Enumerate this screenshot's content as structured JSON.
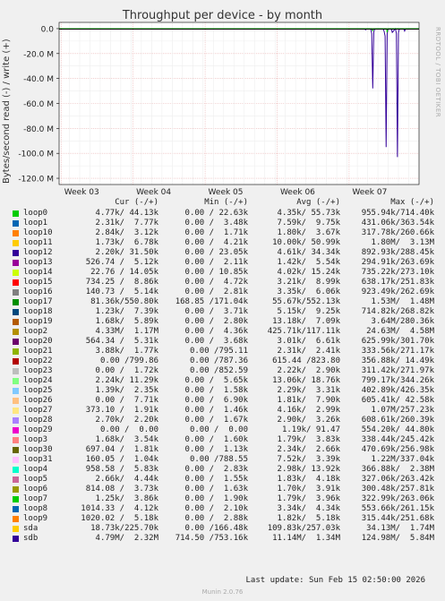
{
  "chart_data": {
    "type": "line",
    "title": "Throughput per device - by month",
    "ylabel": "Bytes/second read (-) / write (+)",
    "yticks": [
      "0.0",
      "-20.0 M",
      "-40.0 M",
      "-60.0 M",
      "-80.0 M",
      "-100.0 M",
      "-120.0 M"
    ],
    "ylim": [
      -125,
      5
    ],
    "y_unit": "M",
    "xticks": [
      "Week 03",
      "Week 04",
      "Week 05",
      "Week 06",
      "Week 07"
    ],
    "xlim": [
      0,
      35
    ],
    "grid": true,
    "side_label": "RRDTOOL / TOBI OETIKER",
    "series": [
      {
        "name": "sdb",
        "color": "#330099",
        "points": [
          [
            0,
            0
          ],
          [
            29.7,
            0
          ],
          [
            29.8,
            -1
          ],
          [
            29.9,
            0
          ],
          [
            30.3,
            0
          ],
          [
            30.4,
            -4
          ],
          [
            30.5,
            -48
          ],
          [
            30.6,
            -3
          ],
          [
            30.7,
            0
          ],
          [
            31.5,
            0
          ],
          [
            31.6,
            -2
          ],
          [
            31.7,
            -6
          ],
          [
            31.8,
            -95
          ],
          [
            31.9,
            -4
          ],
          [
            32,
            0
          ],
          [
            32.3,
            0
          ],
          [
            32.4,
            -3
          ],
          [
            32.5,
            -2
          ],
          [
            32.7,
            0
          ],
          [
            32.8,
            -4
          ],
          [
            32.9,
            -103
          ],
          [
            33,
            -3
          ],
          [
            33.1,
            0
          ],
          [
            33.5,
            0
          ],
          [
            33.6,
            -2
          ],
          [
            33.7,
            0
          ],
          [
            35,
            0
          ]
        ]
      },
      {
        "name": "sda",
        "color": "#00cc00",
        "points": [
          [
            0,
            0
          ],
          [
            30.45,
            0
          ],
          [
            30.5,
            -2
          ],
          [
            30.55,
            0
          ],
          [
            31.85,
            0
          ],
          [
            31.9,
            -3
          ],
          [
            31.95,
            0
          ],
          [
            35,
            0
          ]
        ]
      }
    ]
  },
  "legend": {
    "headers": {
      "cur": "Cur (-/+)",
      "min": "Min (-/+)",
      "avg": "Avg (-/+)",
      "max": "Max (-/+)"
    },
    "rows": [
      {
        "name": "loop0",
        "color": "#00cc00",
        "cur": "4.77k/ 44.13k",
        "min": "0.00 / 22.63k",
        "avg": "4.35k/ 55.73k",
        "max": "955.94k/714.40k"
      },
      {
        "name": "loop1",
        "color": "#0066b3",
        "cur": "2.31k/  7.77k",
        "min": "0.00 /  3.48k",
        "avg": "7.59k/  9.75k",
        "max": "431.06k/363.54k"
      },
      {
        "name": "loop10",
        "color": "#ff8000",
        "cur": "2.84k/  3.12k",
        "min": "0.00 /  1.71k",
        "avg": "1.80k/  3.67k",
        "max": "317.78k/260.66k"
      },
      {
        "name": "loop11",
        "color": "#ffcc00",
        "cur": "1.73k/  6.78k",
        "min": "0.00 /  4.21k",
        "avg": "10.00k/ 50.99k",
        "max": "1.80M/  3.13M"
      },
      {
        "name": "loop12",
        "color": "#330099",
        "cur": "2.20k/ 31.50k",
        "min": "0.00 / 23.05k",
        "avg": "4.61k/ 34.34k",
        "max": "892.93k/288.45k"
      },
      {
        "name": "loop13",
        "color": "#990099",
        "cur": "526.74 /  5.12k",
        "min": "0.00 /  2.11k",
        "avg": "1.42k/  5.54k",
        "max": "294.91k/263.69k"
      },
      {
        "name": "loop14",
        "color": "#ccff00",
        "cur": "22.76 / 14.05k",
        "min": "0.00 / 10.85k",
        "avg": "4.02k/ 15.24k",
        "max": "735.22k/273.10k"
      },
      {
        "name": "loop15",
        "color": "#ff0000",
        "cur": "734.25 /  8.86k",
        "min": "0.00 /  4.72k",
        "avg": "3.21k/  8.99k",
        "max": "638.17k/251.83k"
      },
      {
        "name": "loop16",
        "color": "#808080",
        "cur": "140.73 /  5.14k",
        "min": "0.00 /  2.81k",
        "avg": "3.35k/  6.06k",
        "max": "923.49k/262.69k"
      },
      {
        "name": "loop17",
        "color": "#008f00",
        "cur": "81.36k/550.80k",
        "min": "168.85 /171.04k",
        "avg": "55.67k/552.13k",
        "max": "1.53M/  1.48M"
      },
      {
        "name": "loop18",
        "color": "#00487d",
        "cur": "1.23k/  7.39k",
        "min": "0.00 /  3.71k",
        "avg": "5.15k/  9.25k",
        "max": "714.82k/268.82k"
      },
      {
        "name": "loop19",
        "color": "#b35a00",
        "cur": "1.68k/  5.89k",
        "min": "0.00 /  2.80k",
        "avg": "13.18k/  7.09k",
        "max": "3.64M/280.36k"
      },
      {
        "name": "loop2",
        "color": "#b38f00",
        "cur": "4.33M/  1.17M",
        "min": "0.00 /  4.36k",
        "avg": "425.71k/117.11k",
        "max": "24.63M/  4.58M"
      },
      {
        "name": "loop20",
        "color": "#6b006b",
        "cur": "564.34 /  5.31k",
        "min": "0.00 /  3.68k",
        "avg": "3.01k/  6.61k",
        "max": "625.99k/301.70k"
      },
      {
        "name": "loop21",
        "color": "#8fb300",
        "cur": "3.88k/  1.77k",
        "min": "0.00 /795.11",
        "avg": "2.31k/  2.41k",
        "max": "333.56k/271.17k"
      },
      {
        "name": "loop22",
        "color": "#b30000",
        "cur": "0.00 /799.86",
        "min": "0.00 /787.36",
        "avg": "615.44 /823.80",
        "max": "356.88k/ 14.49k"
      },
      {
        "name": "loop23",
        "color": "#bebebe",
        "cur": "0.00 /  1.72k",
        "min": "0.00 /852.59",
        "avg": "2.22k/  2.90k",
        "max": "311.42k/271.97k"
      },
      {
        "name": "loop24",
        "color": "#80ff80",
        "cur": "2.24k/ 11.29k",
        "min": "0.00 /  5.65k",
        "avg": "13.06k/ 18.76k",
        "max": "799.17k/344.26k"
      },
      {
        "name": "loop25",
        "color": "#80c9ff",
        "cur": "1.39k/  2.35k",
        "min": "0.00 /  1.58k",
        "avg": "2.29k/  3.31k",
        "max": "402.89k/426.35k"
      },
      {
        "name": "loop26",
        "color": "#ffc080",
        "cur": "0.00 /  7.71k",
        "min": "0.00 /  6.90k",
        "avg": "1.81k/  7.90k",
        "max": "605.41k/ 42.58k"
      },
      {
        "name": "loop27",
        "color": "#ffe680",
        "cur": "373.10 /  1.91k",
        "min": "0.00 /  1.46k",
        "avg": "4.16k/  2.99k",
        "max": "1.07M/257.23k"
      },
      {
        "name": "loop28",
        "color": "#aa80ff",
        "cur": "2.70k/  2.20k",
        "min": "0.00 /  1.67k",
        "avg": "2.90k/  3.26k",
        "max": "608.61k/260.39k"
      },
      {
        "name": "loop29",
        "color": "#ee00cc",
        "cur": "0.00 /  0.00",
        "min": "0.00 /  0.00",
        "avg": "1.19k/ 91.47",
        "max": "554.20k/ 44.80k"
      },
      {
        "name": "loop3",
        "color": "#ff8080",
        "cur": "1.68k/  3.54k",
        "min": "0.00 /  1.60k",
        "avg": "1.79k/  3.83k",
        "max": "338.44k/245.42k"
      },
      {
        "name": "loop30",
        "color": "#666600",
        "cur": "697.04 /  1.81k",
        "min": "0.00 /  1.13k",
        "avg": "2.34k/  2.66k",
        "max": "470.69k/256.98k"
      },
      {
        "name": "loop31",
        "color": "#ffbfff",
        "cur": "160.05 /  1.04k",
        "min": "0.00 /788.55",
        "avg": "7.52k/  3.39k",
        "max": "1.22M/337.04k"
      },
      {
        "name": "loop4",
        "color": "#00ffcc",
        "cur": "958.58 /  5.83k",
        "min": "0.00 /  2.83k",
        "avg": "2.98k/ 13.92k",
        "max": "366.88k/  2.38M"
      },
      {
        "name": "loop5",
        "color": "#cc6699",
        "cur": "2.66k/  4.44k",
        "min": "0.00 /  1.55k",
        "avg": "1.83k/  4.18k",
        "max": "327.06k/263.42k"
      },
      {
        "name": "loop6",
        "color": "#999900",
        "cur": "814.08 /  3.73k",
        "min": "0.00 /  1.63k",
        "avg": "1.70k/  3.91k",
        "max": "300.48k/257.81k"
      },
      {
        "name": "loop7",
        "color": "#00cc00",
        "cur": "1.25k/  3.86k",
        "min": "0.00 /  1.90k",
        "avg": "1.79k/  3.96k",
        "max": "322.99k/263.06k"
      },
      {
        "name": "loop8",
        "color": "#0066b3",
        "cur": "1014.33 /  4.12k",
        "min": "0.00 /  2.10k",
        "avg": "3.34k/  4.34k",
        "max": "553.66k/261.15k"
      },
      {
        "name": "loop9",
        "color": "#ff8000",
        "cur": "1020.02 /  5.18k",
        "min": "0.00 /  2.88k",
        "avg": "1.82k/  5.18k",
        "max": "315.44k/251.68k"
      },
      {
        "name": "sda",
        "color": "#ffcc00",
        "cur": "18.73k/225.70k",
        "min": "0.00 /166.48k",
        "avg": "109.83k/257.03k",
        "max": "34.13M/  1.74M"
      },
      {
        "name": "sdb",
        "color": "#330099",
        "cur": "4.79M/  2.32M",
        "min": "714.50 /753.16k",
        "avg": "11.14M/  1.34M",
        "max": "124.98M/  5.84M"
      }
    ]
  },
  "footer": {
    "last_update": "Last update: Sun Feb 15 02:50:00 2026",
    "version": "Munin 2.0.76"
  }
}
